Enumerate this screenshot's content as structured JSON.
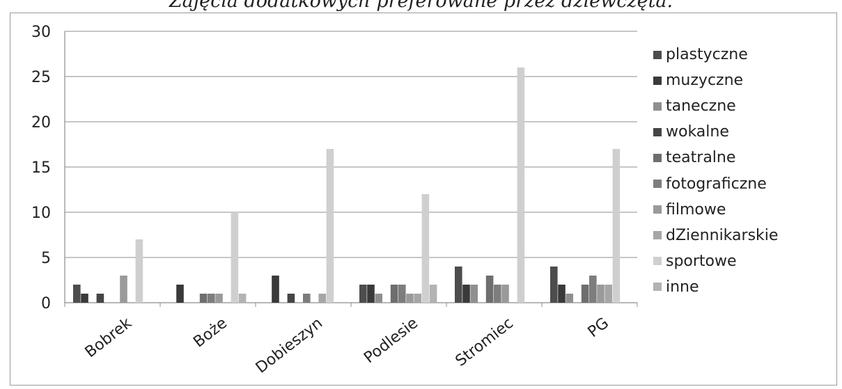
{
  "chart_data": {
    "type": "bar",
    "title": "Zajęcia dodatkowych preferowane przez dziewczęta.",
    "xlabel": "",
    "ylabel": "",
    "ylim": [
      0,
      30
    ],
    "yticks": [
      0,
      5,
      10,
      15,
      20,
      25,
      30
    ],
    "grid": true,
    "legend_position": "right",
    "categories": [
      "Bobrek",
      "Boże",
      "Dobieszyn",
      "Podlesie",
      "Stromiec",
      "PG"
    ],
    "series": [
      {
        "name": "plastyczne",
        "color": "#4d4d4d",
        "values": [
          2,
          0,
          0,
          2,
          4,
          4
        ]
      },
      {
        "name": "muzyczne",
        "color": "#3a3a3a",
        "values": [
          1,
          2,
          3,
          2,
          2,
          2
        ]
      },
      {
        "name": "taneczne",
        "color": "#8f8f8f",
        "values": [
          0,
          0,
          0,
          1,
          2,
          1
        ]
      },
      {
        "name": "wokalne",
        "color": "#454545",
        "values": [
          1,
          0,
          1,
          0,
          0,
          0
        ]
      },
      {
        "name": "teatralne",
        "color": "#6e6e6e",
        "values": [
          0,
          1,
          0,
          2,
          3,
          2
        ]
      },
      {
        "name": "fotograficzne",
        "color": "#7d7d7d",
        "values": [
          0,
          1,
          1,
          2,
          2,
          3
        ]
      },
      {
        "name": "filmowe",
        "color": "#9a9a9a",
        "values": [
          3,
          1,
          0,
          1,
          2,
          2
        ]
      },
      {
        "name": "dZiennikarskie",
        "color": "#a6a6a6",
        "values": [
          0,
          0,
          1,
          1,
          0,
          2
        ]
      },
      {
        "name": "sportowe",
        "color": "#cfcfcf",
        "values": [
          7,
          10,
          17,
          12,
          26,
          17
        ]
      },
      {
        "name": "inne",
        "color": "#b3b3b3",
        "values": [
          0,
          1,
          0,
          2,
          0,
          0
        ]
      }
    ]
  }
}
